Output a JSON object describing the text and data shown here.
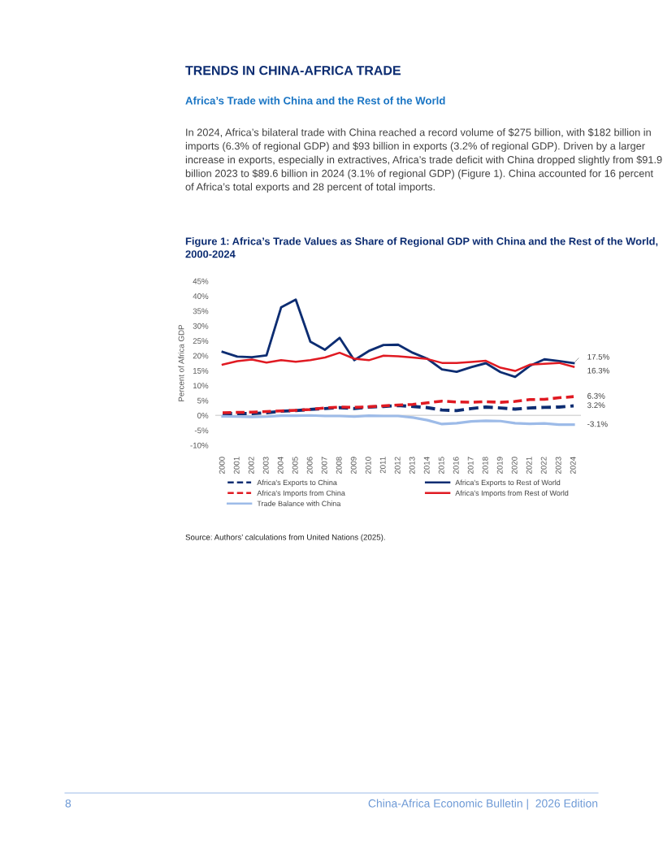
{
  "chart_data": {
    "type": "line",
    "title": "Figure 1: Africa’s Trade Values as Share of Regional GDP with China and the Rest of the World, 2000-2024",
    "ylabel": "Percent of Africa GDP",
    "categories": [
      "2000",
      "2001",
      "2002",
      "2003",
      "2004",
      "2005",
      "2006",
      "2007",
      "2008",
      "2009",
      "2010",
      "2011",
      "2012",
      "2013",
      "2014",
      "2015",
      "2016",
      "2017",
      "2018",
      "2019",
      "2020",
      "2021",
      "2022",
      "2023",
      "2024"
    ],
    "series": [
      {
        "name": "Africa's Exports to China",
        "color": "#0d2d72",
        "line_style": "dashed",
        "values": [
          0.6,
          0.6,
          0.6,
          0.9,
          1.4,
          1.6,
          2.0,
          2.3,
          2.6,
          2.3,
          2.8,
          3.0,
          3.3,
          3.0,
          2.6,
          1.8,
          1.6,
          2.3,
          2.8,
          2.5,
          2.1,
          2.5,
          2.7,
          2.8,
          3.2
        ]
      },
      {
        "name": "Africa's Imports from China",
        "color": "#e01a22",
        "line_style": "dashed",
        "values": [
          0.9,
          1.0,
          1.1,
          1.3,
          1.5,
          1.7,
          2.0,
          2.5,
          2.8,
          2.7,
          2.9,
          3.2,
          3.5,
          3.7,
          4.2,
          4.8,
          4.5,
          4.4,
          4.6,
          4.4,
          4.7,
          5.3,
          5.4,
          5.9,
          6.3
        ]
      },
      {
        "name": "Trade Balance with China",
        "color": "#9dbbe8",
        "line_style": "solid",
        "values": [
          -0.3,
          -0.4,
          -0.5,
          -0.4,
          -0.1,
          -0.1,
          0.0,
          -0.2,
          -0.2,
          -0.4,
          -0.1,
          -0.2,
          -0.2,
          -0.7,
          -1.6,
          -2.9,
          -2.6,
          -2.0,
          -1.8,
          -1.9,
          -2.6,
          -2.8,
          -2.7,
          -3.1,
          -3.1
        ]
      },
      {
        "name": "Africa's Exports to Rest of World",
        "color": "#0d2d72",
        "line_style": "solid",
        "values": [
          21.3,
          19.7,
          19.5,
          20.1,
          36.2,
          38.8,
          24.7,
          22.0,
          26.0,
          18.5,
          21.6,
          23.6,
          23.7,
          21.0,
          19.0,
          15.4,
          14.6,
          16.2,
          17.5,
          14.5,
          12.9,
          16.6,
          18.8,
          18.2,
          17.5
        ]
      },
      {
        "name": "Africa's Imports from Rest of World",
        "color": "#e01a22",
        "line_style": "solid",
        "values": [
          17.0,
          18.2,
          18.7,
          17.7,
          18.5,
          18.0,
          18.5,
          19.4,
          21.0,
          19.0,
          18.5,
          20.0,
          19.8,
          19.4,
          18.9,
          17.6,
          17.6,
          17.9,
          18.3,
          16.0,
          14.9,
          17.0,
          17.3,
          17.6,
          16.3
        ]
      }
    ],
    "ylim": [
      -10,
      45
    ],
    "yticks": [
      {
        "value": -10,
        "label": "-10%"
      },
      {
        "value": -5,
        "label": "-5%"
      },
      {
        "value": 0,
        "label": "0%"
      },
      {
        "value": 5,
        "label": "5%"
      },
      {
        "value": 10,
        "label": "10%"
      },
      {
        "value": 15,
        "label": "15%"
      },
      {
        "value": 20,
        "label": "20%"
      },
      {
        "value": 25,
        "label": "25%"
      },
      {
        "value": 30,
        "label": "30%"
      },
      {
        "value": 35,
        "label": "35%"
      },
      {
        "value": 40,
        "label": "40%"
      },
      {
        "value": 45,
        "label": "45%"
      }
    ],
    "ref_lines": [
      {
        "axis": "y",
        "value": 0,
        "color": "#d9d9d9"
      }
    ],
    "grid": false,
    "legend": "bottom",
    "marker": "none",
    "annotations": [
      "TRENDS IN CHINA-AFRICA TRADE",
      "Africa’s Trade with China and the Rest of the World",
      "In 2024, Africa’s bilateral trade with China reached a record volume of $275 billion, with $182 billion in imports (6.3% of regional GDP) and $93 billion in exports (3.2% of regional GDP). Driven by a larger increase in exports, especially in extractives, Africa’s trade deficit with China dropped slightly from $91.9 billion 2023 to $89.6 billion in 2024 (3.1% of regional GDP) (Figure 1). China accounted for 16 percent of Africa’s total exports and 28 percent of total imports.",
      "Source: Authors’ calculations from United Nations (2025).",
      "8",
      "China-Africa Economic Bulletin |  2026 Edition",
      {
        "text": "17.5%",
        "x": "2024",
        "y": 17.5
      },
      {
        "text": "16.3%",
        "x": "2024",
        "y": 16.3
      },
      {
        "text": "6.3%",
        "x": "2024",
        "y": 6.3
      },
      {
        "text": "3.2%",
        "x": "2024",
        "y": 3.2
      },
      {
        "text": "-3.1%",
        "x": "2024",
        "y": -3.1
      }
    ]
  }
}
